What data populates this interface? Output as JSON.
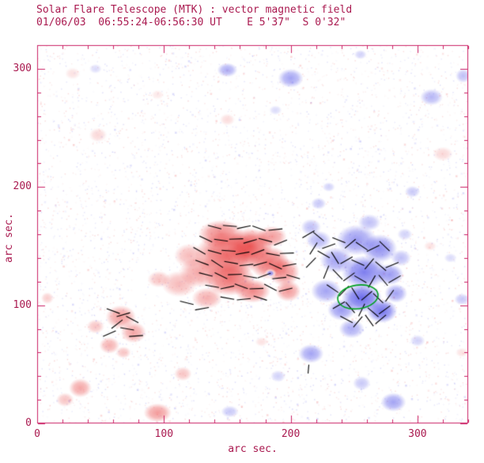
{
  "chart_data": {
    "type": "heatmap",
    "title": "Solar Flare Telescope (MTK) : vector magnetic field",
    "subtitle": "01/06/03  06:55:24-06:56:30 UT    E 5'37\"  S 0'32\"",
    "xlabel": "arc sec.",
    "ylabel": "arc sec.",
    "xlim": [
      0,
      340
    ],
    "ylim": [
      0,
      320
    ],
    "xticks": [
      0,
      100,
      200,
      300
    ],
    "yticks": [
      0,
      100,
      200,
      300
    ],
    "minor_tick_step": 20,
    "grid": false,
    "legend_position": "none",
    "colors": {
      "frame": "#cc2266",
      "text": "#aa1a50",
      "positive": "#e83838",
      "negative": "#4848e8",
      "vector": "#000000",
      "contour": "#00a020",
      "background": "#ffffff"
    },
    "noise_speckle_count": 5200,
    "regions": {
      "positive": [
        [
          150,
          142,
          26,
          20,
          0.75
        ],
        [
          168,
          150,
          18,
          15,
          0.8
        ],
        [
          183,
          136,
          16,
          14,
          0.7
        ],
        [
          152,
          122,
          20,
          14,
          0.7
        ],
        [
          170,
          112,
          14,
          10,
          0.6
        ],
        [
          195,
          128,
          12,
          12,
          0.55
        ],
        [
          198,
          112,
          10,
          9,
          0.5
        ],
        [
          128,
          128,
          16,
          13,
          0.45
        ],
        [
          112,
          118,
          14,
          11,
          0.35
        ],
        [
          134,
          106,
          12,
          9,
          0.4
        ],
        [
          96,
          122,
          9,
          7,
          0.3
        ],
        [
          120,
          142,
          12,
          10,
          0.35
        ],
        [
          145,
          160,
          18,
          12,
          0.6
        ],
        [
          185,
          158,
          12,
          9,
          0.5
        ],
        [
          66,
          90,
          12,
          10,
          0.5
        ],
        [
          76,
          77,
          10,
          9,
          0.45
        ],
        [
          57,
          66,
          8,
          7,
          0.4
        ],
        [
          46,
          82,
          7,
          6,
          0.3
        ],
        [
          68,
          60,
          6,
          5,
          0.3
        ],
        [
          34,
          30,
          9,
          8,
          0.45
        ],
        [
          22,
          20,
          7,
          6,
          0.3
        ],
        [
          95,
          9,
          11,
          8,
          0.5
        ],
        [
          115,
          42,
          7,
          6,
          0.3
        ],
        [
          8,
          106,
          5,
          5,
          0.25
        ],
        [
          177,
          69,
          5,
          4,
          0.15
        ],
        [
          48,
          244,
          7,
          6,
          0.2
        ],
        [
          150,
          257,
          6,
          5,
          0.18
        ],
        [
          28,
          296,
          6,
          5,
          0.15
        ],
        [
          95,
          278,
          5,
          4,
          0.12
        ],
        [
          320,
          228,
          8,
          6,
          0.2
        ],
        [
          310,
          150,
          5,
          4,
          0.15
        ],
        [
          335,
          60,
          5,
          4,
          0.15
        ]
      ],
      "negative": [
        [
          252,
          155,
          16,
          13,
          0.55
        ],
        [
          270,
          148,
          14,
          12,
          0.6
        ],
        [
          236,
          138,
          13,
          11,
          0.5
        ],
        [
          258,
          128,
          18,
          14,
          0.7
        ],
        [
          256,
          106,
          16,
          12,
          0.8
        ],
        [
          272,
          95,
          12,
          10,
          0.75
        ],
        [
          240,
          96,
          11,
          9,
          0.55
        ],
        [
          228,
          112,
          12,
          10,
          0.5
        ],
        [
          278,
          126,
          11,
          9,
          0.55
        ],
        [
          283,
          110,
          9,
          8,
          0.5
        ],
        [
          248,
          80,
          10,
          8,
          0.45
        ],
        [
          222,
          155,
          10,
          8,
          0.4
        ],
        [
          216,
          166,
          8,
          7,
          0.35
        ],
        [
          262,
          170,
          9,
          7,
          0.35
        ],
        [
          287,
          140,
          8,
          7,
          0.35
        ],
        [
          290,
          160,
          6,
          5,
          0.25
        ],
        [
          222,
          186,
          6,
          5,
          0.3
        ],
        [
          230,
          200,
          5,
          4,
          0.25
        ],
        [
          150,
          299,
          8,
          6,
          0.45
        ],
        [
          200,
          292,
          10,
          8,
          0.5
        ],
        [
          188,
          265,
          5,
          4,
          0.2
        ],
        [
          311,
          276,
          9,
          7,
          0.4
        ],
        [
          336,
          294,
          6,
          6,
          0.35
        ],
        [
          255,
          312,
          5,
          4,
          0.25
        ],
        [
          296,
          196,
          6,
          5,
          0.3
        ],
        [
          335,
          105,
          6,
          5,
          0.3
        ],
        [
          326,
          140,
          5,
          4,
          0.2
        ],
        [
          216,
          59,
          10,
          8,
          0.5
        ],
        [
          281,
          18,
          10,
          8,
          0.5
        ],
        [
          256,
          34,
          7,
          6,
          0.3
        ],
        [
          300,
          70,
          6,
          5,
          0.25
        ],
        [
          190,
          40,
          6,
          5,
          0.25
        ],
        [
          152,
          10,
          7,
          5,
          0.3
        ],
        [
          46,
          300,
          5,
          4,
          0.2
        ],
        [
          184,
          127,
          3,
          2.5,
          0.65
        ]
      ],
      "white_gaps": [
        [
          184,
          127,
          5,
          4
        ]
      ]
    },
    "vectors": [
      [
        140,
        166,
        -15
      ],
      [
        152,
        167,
        -5
      ],
      [
        163,
        166,
        12
      ],
      [
        175,
        165,
        -20
      ],
      [
        188,
        164,
        6
      ],
      [
        133,
        156,
        -25
      ],
      [
        145,
        155,
        -8
      ],
      [
        157,
        156,
        2
      ],
      [
        168,
        154,
        16
      ],
      [
        180,
        155,
        -14
      ],
      [
        192,
        153,
        22
      ],
      [
        128,
        146,
        -30
      ],
      [
        140,
        145,
        -15
      ],
      [
        151,
        146,
        -4
      ],
      [
        162,
        144,
        10
      ],
      [
        174,
        145,
        20
      ],
      [
        186,
        143,
        -10
      ],
      [
        197,
        144,
        2
      ],
      [
        130,
        136,
        -20
      ],
      [
        142,
        135,
        -33
      ],
      [
        153,
        136,
        -10
      ],
      [
        165,
        134,
        6
      ],
      [
        176,
        135,
        15
      ],
      [
        188,
        133,
        -24
      ],
      [
        199,
        134,
        10
      ],
      [
        133,
        126,
        -14
      ],
      [
        145,
        125,
        -26
      ],
      [
        156,
        126,
        2
      ],
      [
        168,
        124,
        -10
      ],
      [
        179,
        125,
        20
      ],
      [
        191,
        123,
        6
      ],
      [
        202,
        124,
        -16
      ],
      [
        138,
        116,
        -10
      ],
      [
        150,
        115,
        12
      ],
      [
        161,
        116,
        -20
      ],
      [
        173,
        114,
        2
      ],
      [
        184,
        115,
        -28
      ],
      [
        196,
        113,
        14
      ],
      [
        150,
        106,
        -10
      ],
      [
        163,
        105,
        6
      ],
      [
        176,
        106,
        -18
      ],
      [
        118,
        102,
        -14
      ],
      [
        130,
        97,
        10
      ],
      [
        60,
        95,
        -20
      ],
      [
        68,
        92,
        16
      ],
      [
        75,
        88,
        -28
      ],
      [
        63,
        84,
        38
      ],
      [
        71,
        80,
        -10
      ],
      [
        57,
        76,
        24
      ],
      [
        78,
        74,
        4
      ],
      [
        214,
        160,
        30
      ],
      [
        222,
        158,
        -40
      ],
      [
        218,
        148,
        58
      ],
      [
        226,
        143,
        -30
      ],
      [
        216,
        136,
        46
      ],
      [
        230,
        150,
        20
      ],
      [
        238,
        155,
        -22
      ],
      [
        247,
        152,
        40
      ],
      [
        256,
        150,
        -34
      ],
      [
        265,
        148,
        26
      ],
      [
        274,
        150,
        -44
      ],
      [
        235,
        140,
        -58
      ],
      [
        244,
        138,
        30
      ],
      [
        253,
        136,
        -24
      ],
      [
        262,
        135,
        50
      ],
      [
        271,
        133,
        -40
      ],
      [
        280,
        134,
        22
      ],
      [
        228,
        128,
        68
      ],
      [
        237,
        126,
        -46
      ],
      [
        246,
        124,
        36
      ],
      [
        255,
        122,
        -30
      ],
      [
        264,
        120,
        60
      ],
      [
        273,
        121,
        -50
      ],
      [
        282,
        122,
        30
      ],
      [
        233,
        114,
        -34
      ],
      [
        242,
        112,
        46
      ],
      [
        251,
        110,
        -58
      ],
      [
        260,
        108,
        40
      ],
      [
        269,
        106,
        -44
      ],
      [
        278,
        108,
        54
      ],
      [
        238,
        100,
        30
      ],
      [
        247,
        98,
        -50
      ],
      [
        256,
        96,
        64
      ],
      [
        265,
        94,
        -40
      ],
      [
        274,
        96,
        36
      ],
      [
        244,
        88,
        -28
      ],
      [
        253,
        86,
        50
      ],
      [
        262,
        87,
        -54
      ],
      [
        271,
        88,
        40
      ],
      [
        214,
        46,
        85,
        7
      ]
    ],
    "contours": [
      {
        "x": 253,
        "y": 107,
        "rx": 16,
        "ry": 10,
        "rot_deg": -8
      }
    ]
  }
}
